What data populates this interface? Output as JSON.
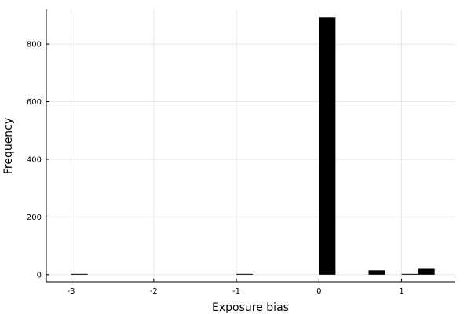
{
  "chart_data": {
    "type": "bar",
    "xlabel": "Exposure bias",
    "ylabel": "Frequency",
    "xlim": [
      -3.3,
      1.65
    ],
    "ylim": [
      -25,
      920
    ],
    "xticks": [
      -3,
      -2,
      -1,
      0,
      1
    ],
    "xtick_labels": [
      "-3",
      "-2",
      "-1",
      "0",
      "1"
    ],
    "yticks": [
      0,
      200,
      400,
      600,
      800
    ],
    "ytick_labels": [
      "0",
      "200",
      "400",
      "600",
      "800"
    ],
    "grid": true,
    "legend": "none",
    "bin_width": 0.2,
    "bars": [
      {
        "x_start": -3.0,
        "x_end": -2.8,
        "value": 2
      },
      {
        "x_start": -1.0,
        "x_end": -0.8,
        "value": 2
      },
      {
        "x_start": 0.0,
        "x_end": 0.2,
        "value": 892
      },
      {
        "x_start": 0.6,
        "x_end": 0.8,
        "value": 15
      },
      {
        "x_start": 1.0,
        "x_end": 1.2,
        "value": 2
      },
      {
        "x_start": 1.2,
        "x_end": 1.4,
        "value": 20
      }
    ],
    "bar_color": "#000000",
    "grid_color": "#e6e6e6",
    "axis_color": "#000000"
  }
}
